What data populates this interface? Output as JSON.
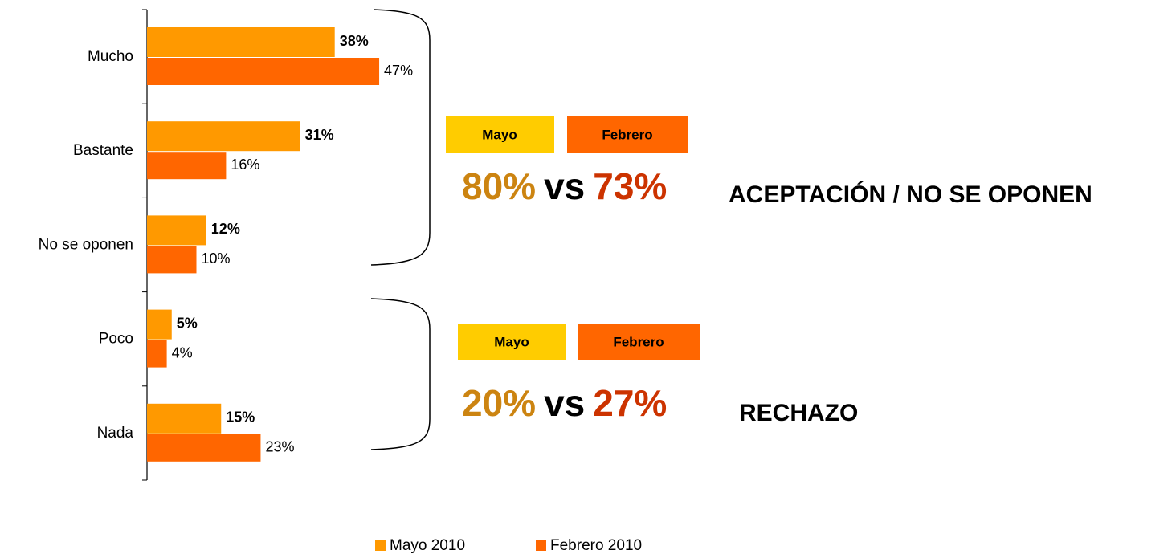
{
  "chart_data": {
    "type": "bar",
    "orientation": "horizontal",
    "categories": [
      "Mucho",
      "Bastante",
      "No se oponen",
      "Poco",
      "Nada"
    ],
    "series": [
      {
        "name": "Mayo 2010",
        "color": "#FF9900",
        "values": [
          38,
          31,
          12,
          5,
          15
        ],
        "value_labels": [
          "38%",
          "31%",
          "12%",
          "5%",
          "15%"
        ]
      },
      {
        "name": "Febrero 2010",
        "color": "#FF6600",
        "values": [
          47,
          16,
          10,
          4,
          23
        ],
        "value_labels": [
          "47%",
          "16%",
          "10%",
          "4%",
          "23%"
        ]
      }
    ],
    "annotations": [
      {
        "boxes": [
          "Mayo",
          "Febrero"
        ],
        "left": "80%",
        "vs": "vs",
        "right": "73%",
        "label": "ACEPTACIÓN / NO SE OPONEN"
      },
      {
        "boxes": [
          "Mayo",
          "Febrero"
        ],
        "left": "20%",
        "vs": "vs",
        "right": "27%",
        "label": "RECHAZO"
      }
    ],
    "legend": "bottom"
  }
}
